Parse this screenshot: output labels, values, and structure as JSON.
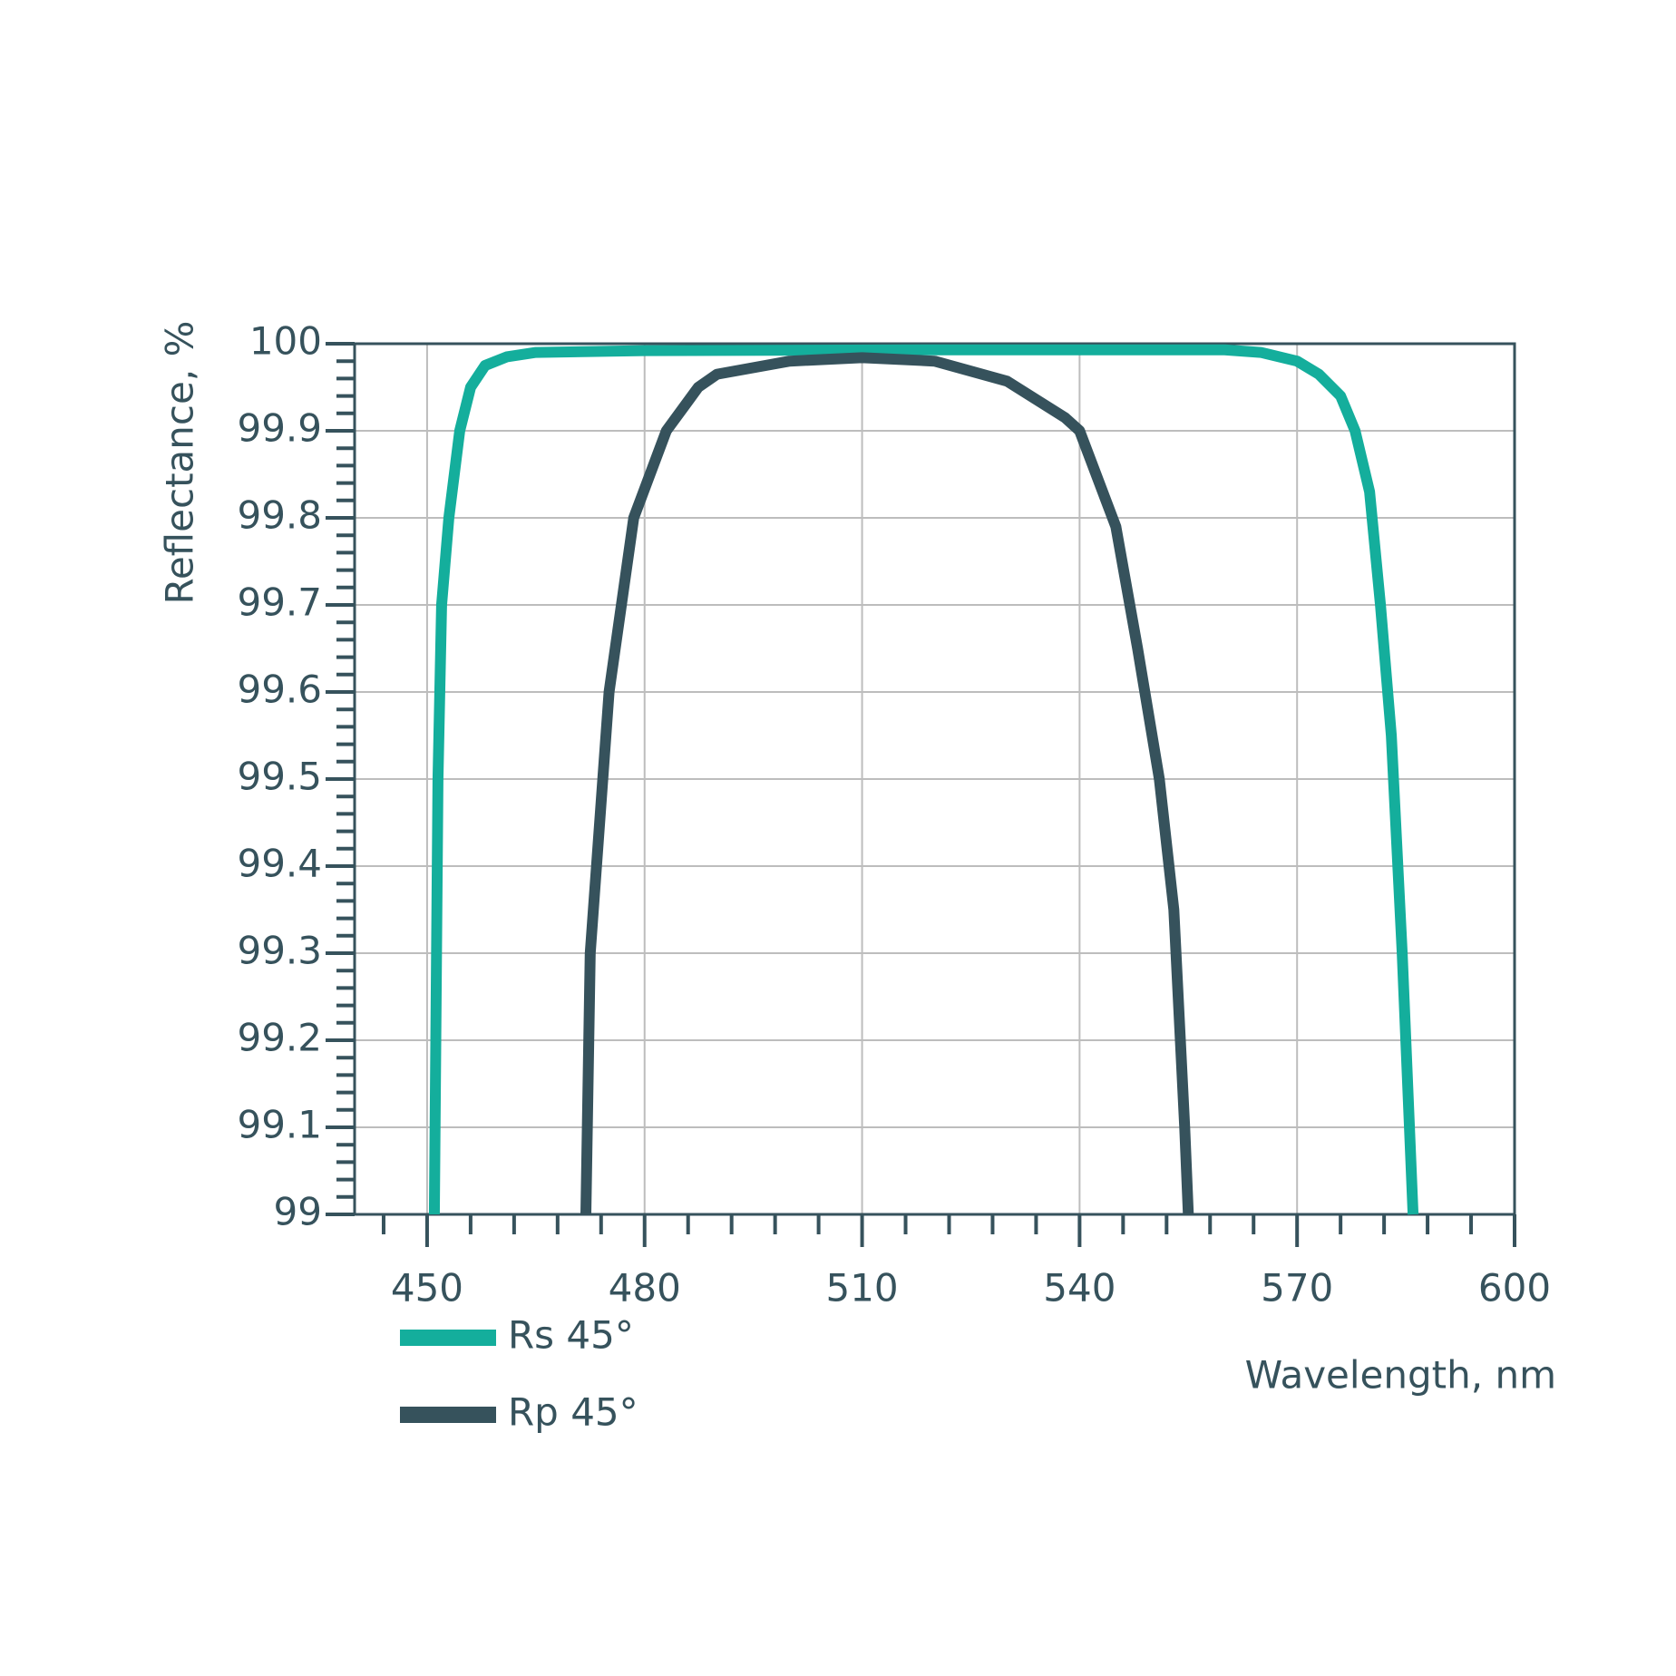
{
  "chart_data": {
    "type": "line",
    "y_label": "Reflectance, %",
    "x_label": "Wavelength, nm",
    "xlim": [
      440,
      600
    ],
    "ylim": [
      99,
      100
    ],
    "xticks": [
      450,
      480,
      510,
      540,
      570,
      600
    ],
    "yticks": [
      99,
      99.1,
      99.2,
      99.3,
      99.4,
      99.5,
      99.6,
      99.7,
      99.8,
      99.9,
      100
    ],
    "xminor_ticks": [
      444,
      456,
      462,
      468,
      474,
      486,
      492,
      498,
      504,
      516,
      522,
      528,
      534,
      546,
      552,
      558,
      564,
      576,
      582,
      588,
      594
    ],
    "yminor_ticks": [
      99.02,
      99.04,
      99.06,
      99.08,
      99.12,
      99.14,
      99.16,
      99.18,
      99.22,
      99.24,
      99.26,
      99.28,
      99.32,
      99.34,
      99.36,
      99.38,
      99.42,
      99.44,
      99.46,
      99.48,
      99.52,
      99.54,
      99.56,
      99.58,
      99.62,
      99.64,
      99.66,
      99.68,
      99.72,
      99.74,
      99.76,
      99.78,
      99.82,
      99.84,
      99.86,
      99.88,
      99.92,
      99.94,
      99.96,
      99.98
    ],
    "grid": true,
    "legend": "bottom-left",
    "series": [
      {
        "name": "Rs 45°",
        "color": "#14ae9c",
        "x": [
          451,
          451.5,
          452,
          453,
          454.5,
          456,
          458,
          461,
          465,
          480,
          520,
          560,
          565,
          570,
          573,
          576,
          578,
          580,
          581.5,
          583,
          584.5,
          586
        ],
        "values": [
          99.0,
          99.5,
          99.7,
          99.8,
          99.9,
          99.95,
          99.975,
          99.985,
          99.99,
          99.992,
          99.993,
          99.993,
          99.99,
          99.98,
          99.965,
          99.94,
          99.9,
          99.83,
          99.7,
          99.55,
          99.3,
          99.0
        ]
      },
      {
        "name": "Rp 45°",
        "color": "#36525c",
        "x": [
          471.9,
          472.5,
          475.1,
          478.5,
          483,
          487.4,
          490,
          500,
          510,
          520,
          530,
          538,
          540,
          545,
          548,
          551,
          553,
          554.5,
          555
        ],
        "values": [
          99.0,
          99.3,
          99.6,
          99.8,
          99.9,
          99.95,
          99.965,
          99.98,
          99.984,
          99.98,
          99.957,
          99.915,
          99.9,
          99.79,
          99.65,
          99.5,
          99.35,
          99.1,
          99.0
        ]
      }
    ]
  }
}
